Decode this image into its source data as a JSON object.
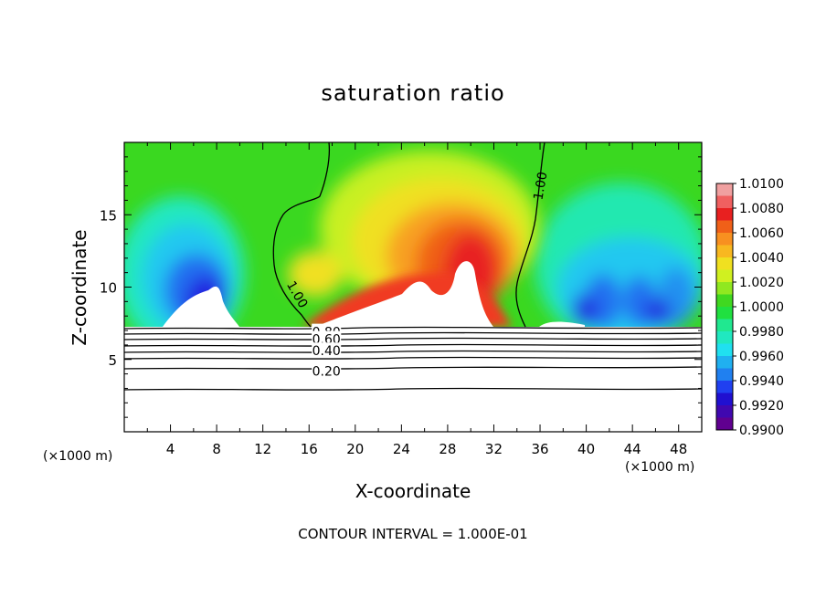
{
  "chart_data": {
    "type": "heatmap",
    "title": "saturation ratio",
    "xlabel": "X-coordinate",
    "ylabel": "Z-coordinate",
    "x_unit": "(×1000 m)",
    "xlim": [
      0,
      50
    ],
    "ylim": [
      0,
      20
    ],
    "x_ticks": [
      4,
      8,
      12,
      16,
      20,
      24,
      28,
      32,
      36,
      40,
      44,
      48
    ],
    "y_ticks": [
      5,
      10,
      15
    ],
    "colorbar": {
      "min": 0.99,
      "max": 1.01,
      "tick_labels": [
        "1.0100",
        "1.0080",
        "1.0060",
        "1.0040",
        "1.0020",
        "1.0000",
        "0.9980",
        "0.9960",
        "0.9940",
        "0.9920",
        "0.9900"
      ],
      "colors": [
        "#f0a0a0",
        "#f06060",
        "#e82020",
        "#f06018",
        "#f89020",
        "#f8b820",
        "#f0e020",
        "#d0f020",
        "#90e820",
        "#40d820",
        "#20e040",
        "#20e890",
        "#20e8c0",
        "#20e0f0",
        "#20b0f0",
        "#2080f0",
        "#2040f0",
        "#2010d0",
        "#4008b0",
        "#600090"
      ]
    },
    "contour_labels": [
      {
        "text": "1.00",
        "x": 15.0,
        "y": 9.5
      },
      {
        "text": "1.00",
        "x": 36.0,
        "y": 17.0
      },
      {
        "text": "0.80",
        "x": 17.5,
        "y": 6.9
      },
      {
        "text": "0.60",
        "x": 17.5,
        "y": 6.4
      },
      {
        "text": "0.40",
        "x": 17.5,
        "y": 5.6
      },
      {
        "text": "0.20",
        "x": 17.5,
        "y": 4.2
      }
    ],
    "contour_interval": "CONTOUR INTERVAL = 1.000E-01"
  }
}
